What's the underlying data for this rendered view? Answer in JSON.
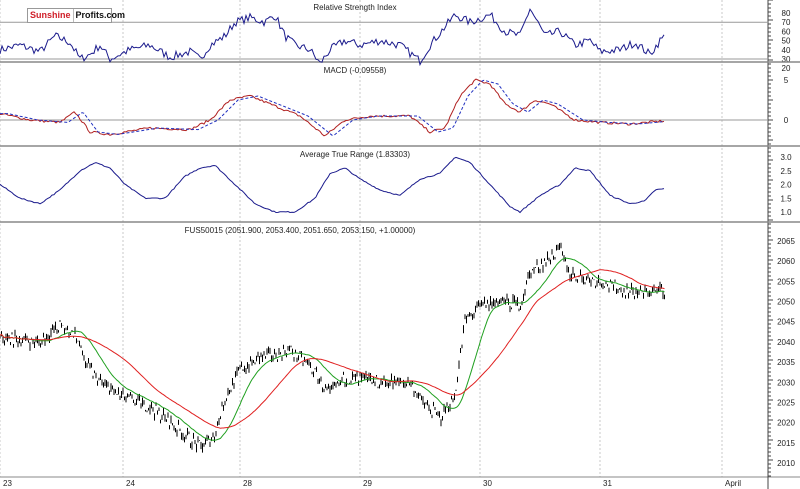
{
  "logo": {
    "part1": "Sunshine",
    "part2": "Profits.com"
  },
  "colors": {
    "rsi": "#1a1a8c",
    "macd": "#b02020",
    "signal": "#2030c0",
    "atr": "#1a1a8c",
    "price": "#000000",
    "ma_short": "#20a020",
    "ma_long": "#e02020",
    "grid": "#c8c8c8"
  },
  "chart_data": [
    {
      "type": "line",
      "title": "Relative Strength Index",
      "yticks": [
        80,
        70,
        60,
        50,
        40,
        30,
        20
      ],
      "ylim": [
        18,
        87
      ],
      "levels": [
        70,
        30
      ],
      "xlim": [
        0,
        768
      ],
      "x": [
        0,
        20,
        40,
        55,
        70,
        80,
        90,
        100,
        110,
        130,
        150,
        170,
        190,
        200,
        210,
        225,
        235,
        250,
        265,
        275,
        285,
        295,
        310,
        320,
        330,
        345,
        360,
        380,
        400,
        420,
        430,
        445,
        455,
        470,
        490,
        505,
        520,
        530,
        545,
        560,
        575,
        590,
        600,
        620,
        635,
        650,
        660,
        665
      ],
      "values": [
        40,
        45,
        38,
        55,
        48,
        30,
        35,
        45,
        30,
        40,
        45,
        32,
        38,
        30,
        45,
        55,
        70,
        75,
        70,
        78,
        55,
        45,
        40,
        25,
        40,
        50,
        45,
        50,
        45,
        28,
        45,
        65,
        78,
        70,
        78,
        60,
        55,
        85,
        55,
        60,
        45,
        50,
        38,
        40,
        48,
        35,
        50,
        55
      ]
    },
    {
      "type": "line",
      "title": "MACD (-0.09558)",
      "yticks": [
        5,
        0
      ],
      "ylim": [
        -3.2,
        7.5
      ],
      "xlim": [
        0,
        768
      ],
      "x": [
        0,
        30,
        60,
        75,
        90,
        110,
        150,
        190,
        210,
        230,
        250,
        280,
        300,
        325,
        345,
        370,
        410,
        430,
        445,
        460,
        475,
        490,
        505,
        520,
        535,
        550,
        575,
        600,
        630,
        665
      ],
      "series": [
        {
          "name": "MACD",
          "values": [
            0.8,
            0,
            -0.3,
            1,
            -1.5,
            -1.8,
            -1,
            -1.2,
            0,
            2.5,
            3,
            1.5,
            0.5,
            -2,
            0,
            0.5,
            0.5,
            -1.5,
            -1,
            3,
            5,
            4.5,
            2,
            1,
            2.5,
            2,
            0,
            -0.3,
            -0.5,
            -0.1
          ]
        },
        {
          "name": "Signal",
          "lag": 8
        }
      ]
    },
    {
      "type": "line",
      "title": "Average True Range (1.83303)",
      "yticks": [
        3.0,
        2.5,
        2.0,
        1.5,
        1.0
      ],
      "ylim": [
        0.6,
        3.2
      ],
      "xlim": [
        0,
        768
      ],
      "x": [
        0,
        20,
        40,
        60,
        80,
        95,
        110,
        125,
        145,
        165,
        185,
        200,
        215,
        235,
        255,
        275,
        295,
        315,
        330,
        345,
        360,
        380,
        400,
        420,
        440,
        455,
        470,
        490,
        510,
        520,
        540,
        560,
        575,
        590,
        610,
        630,
        645,
        655,
        665
      ],
      "values": [
        2.0,
        1.5,
        1.3,
        1.8,
        2.5,
        2.8,
        2.6,
        2.0,
        1.5,
        1.5,
        2.3,
        2.6,
        2.7,
        2.0,
        1.3,
        1.0,
        1.0,
        1.5,
        2.4,
        2.6,
        2.2,
        1.8,
        1.6,
        2.2,
        2.4,
        3.0,
        2.8,
        2.0,
        1.2,
        1.0,
        1.6,
        2.0,
        2.6,
        2.5,
        1.6,
        1.3,
        1.4,
        1.8,
        1.85
      ]
    },
    {
      "type": "line",
      "title": "FUS50015 (2051.900, 2053.400, 2051.650, 2053.150, +1.00000)",
      "yticks": [
        2065,
        2060,
        2055,
        2050,
        2045,
        2040,
        2035,
        2030,
        2025,
        2020,
        2015,
        2010
      ],
      "ylim": [
        2007,
        2069.5
      ],
      "xlim": [
        0,
        768
      ],
      "x": [
        0,
        40,
        60,
        75,
        85,
        100,
        125,
        150,
        175,
        200,
        215,
        225,
        240,
        260,
        290,
        310,
        330,
        345,
        380,
        410,
        420,
        440,
        455,
        465,
        480,
        500,
        520,
        530,
        545,
        560,
        570,
        580,
        600,
        620,
        640,
        665
      ],
      "values": [
        2041,
        2040,
        2044,
        2042,
        2035,
        2030,
        2026,
        2024,
        2019,
        2014,
        2017,
        2026,
        2033,
        2036,
        2038,
        2034,
        2027,
        2031,
        2030,
        2030,
        2026,
        2021,
        2027,
        2045,
        2049,
        2050,
        2049,
        2057,
        2060,
        2063,
        2057,
        2056,
        2055,
        2053,
        2052,
        2053
      ],
      "moving_averages": [
        "short",
        "long"
      ]
    }
  ],
  "xaxis": {
    "labels": [
      {
        "text": "23",
        "pos": 0
      },
      {
        "text": "24",
        "pos": 123
      },
      {
        "text": "28",
        "pos": 240
      },
      {
        "text": "29",
        "pos": 360
      },
      {
        "text": "30",
        "pos": 480
      },
      {
        "text": "31",
        "pos": 600
      },
      {
        "text": "April",
        "pos": 722
      }
    ]
  }
}
